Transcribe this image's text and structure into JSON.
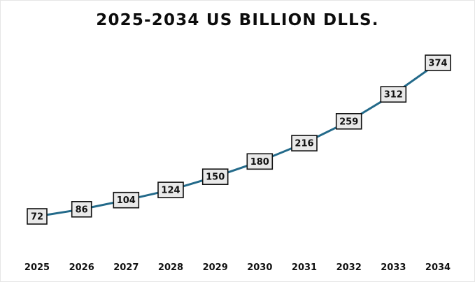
{
  "chart_data": {
    "type": "line",
    "title": "2025-2034 US BILLION DLLS.",
    "xlabel": "",
    "ylabel": "",
    "categories": [
      "2025",
      "2026",
      "2027",
      "2028",
      "2029",
      "2030",
      "2031",
      "2032",
      "2033",
      "2034"
    ],
    "series": [
      {
        "name": "US Billion Dlls.",
        "values": [
          72,
          86,
          104,
          124,
          150,
          180,
          216,
          259,
          312,
          374
        ],
        "color": "#236a8a"
      }
    ],
    "ylim": [
      72,
      374
    ],
    "grid": false,
    "legend": "none",
    "data_labels": true
  }
}
